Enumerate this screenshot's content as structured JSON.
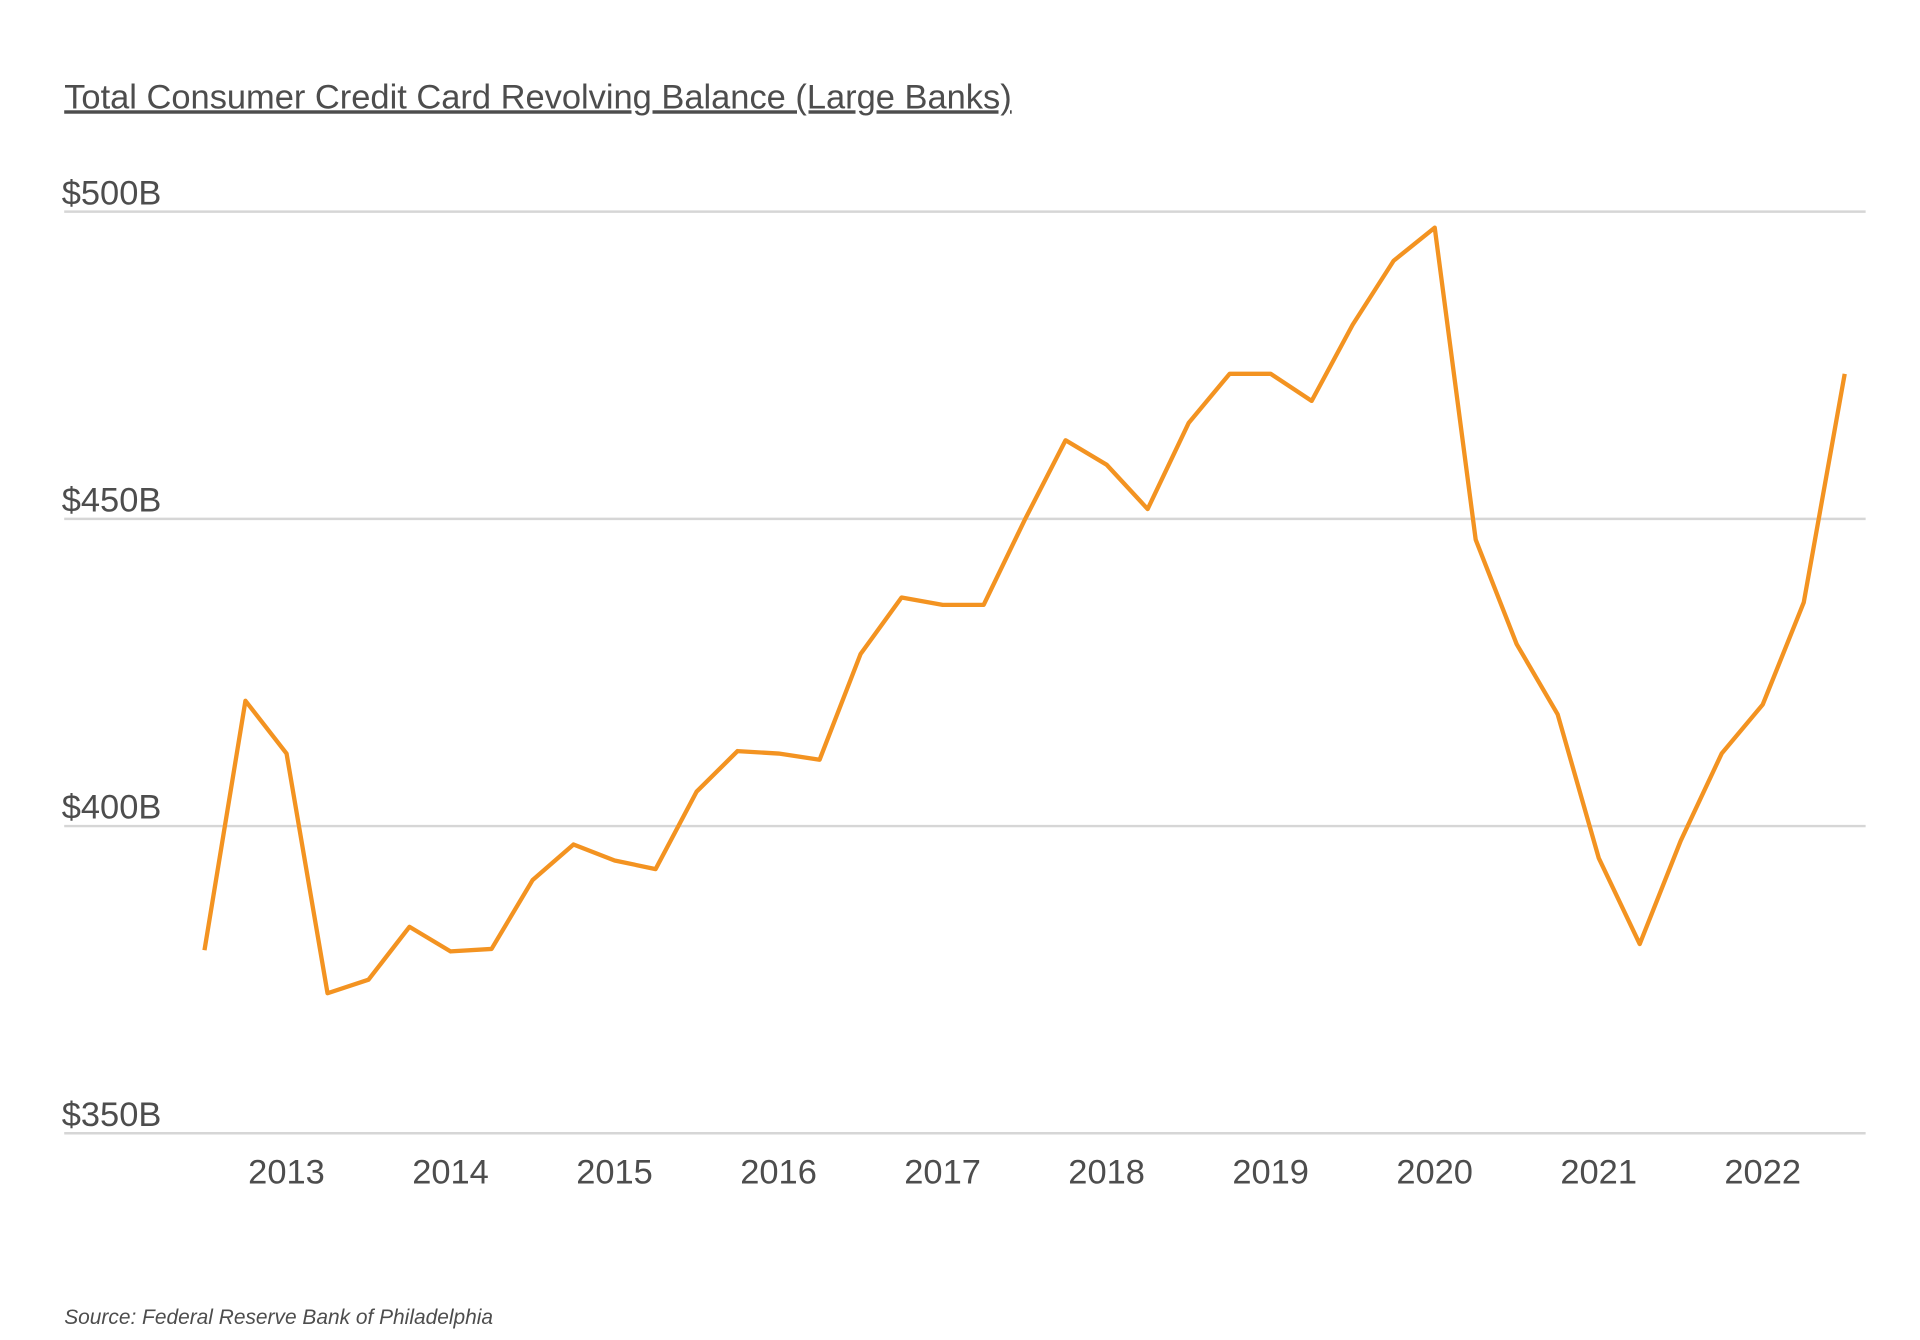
{
  "chart_data": {
    "type": "line",
    "title": "Total Consumer Credit Card Revolving Balance (Large Banks)",
    "source": "Source: Federal Reserve Bank of Philadelphia",
    "xlabel": "",
    "ylabel": "",
    "ylim": [
      350,
      500
    ],
    "y_ticks": [
      {
        "value": 500,
        "label": "$500B"
      },
      {
        "value": 450,
        "label": "$450B"
      },
      {
        "value": 400,
        "label": "$400B"
      },
      {
        "value": 350,
        "label": "$350B"
      }
    ],
    "x_ticks": [
      "2013",
      "2014",
      "2015",
      "2016",
      "2017",
      "2018",
      "2019",
      "2020",
      "2021",
      "2022"
    ],
    "grid": "horizontal",
    "line_color": "#F39321",
    "x": [
      "2012-Q3",
      "2012-Q4",
      "2013-Q1",
      "2013-Q2",
      "2013-Q3",
      "2013-Q4",
      "2014-Q1",
      "2014-Q2",
      "2014-Q3",
      "2014-Q4",
      "2015-Q1",
      "2015-Q2",
      "2015-Q3",
      "2015-Q4",
      "2016-Q1",
      "2016-Q2",
      "2016-Q3",
      "2016-Q4",
      "2017-Q1",
      "2017-Q2",
      "2017-Q3",
      "2017-Q4",
      "2018-Q1",
      "2018-Q2",
      "2018-Q3",
      "2018-Q4",
      "2019-Q1",
      "2019-Q2",
      "2019-Q3",
      "2019-Q4",
      "2020-Q1",
      "2020-Q2",
      "2020-Q3",
      "2020-Q4",
      "2021-Q1",
      "2021-Q2",
      "2021-Q3",
      "2021-Q4",
      "2022-Q1",
      "2022-Q2",
      "2022-Q3"
    ],
    "values": [
      379.8,
      420.4,
      411.8,
      372.8,
      375.0,
      383.6,
      379.6,
      380.0,
      391.2,
      397.0,
      394.4,
      393.0,
      405.6,
      412.2,
      411.8,
      410.8,
      428.0,
      437.2,
      436.0,
      436.0,
      449.8,
      462.8,
      458.8,
      451.6,
      465.6,
      473.6,
      473.6,
      469.2,
      481.6,
      492.0,
      497.4,
      446.6,
      429.6,
      418.2,
      394.8,
      380.8,
      397.6,
      411.8,
      419.8,
      436.4,
      473.6
    ]
  }
}
